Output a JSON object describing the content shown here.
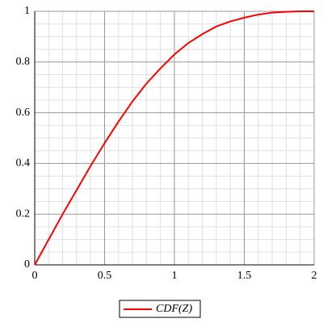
{
  "chart_data": {
    "type": "line",
    "x": [
      0,
      0.1,
      0.2,
      0.3,
      0.4,
      0.5,
      0.6,
      0.7,
      0.8,
      0.9,
      1.0,
      1.1,
      1.2,
      1.3,
      1.4,
      1.5,
      1.6,
      1.7,
      1.8,
      1.9,
      2.0
    ],
    "series": [
      {
        "name": "CDF(Z)",
        "color": "#ff0000",
        "values": [
          0,
          0.1,
          0.2,
          0.295,
          0.39,
          0.48,
          0.565,
          0.645,
          0.715,
          0.775,
          0.83,
          0.875,
          0.91,
          0.94,
          0.96,
          0.975,
          0.987,
          0.995,
          0.998,
          1.0,
          1.0
        ]
      }
    ],
    "xlim": [
      0,
      2
    ],
    "ylim": [
      0,
      1
    ],
    "xticks": [
      0,
      0.5,
      1,
      1.5,
      2
    ],
    "yticks": [
      0,
      0.2,
      0.4,
      0.6,
      0.8,
      1
    ],
    "xminorticks": [
      0.1,
      0.2,
      0.3,
      0.4,
      0.6,
      0.7,
      0.8,
      0.9,
      1.1,
      1.2,
      1.3,
      1.4,
      1.6,
      1.7,
      1.8,
      1.9
    ],
    "yminorticks": [
      0.05,
      0.1,
      0.15,
      0.25,
      0.3,
      0.35,
      0.45,
      0.5,
      0.55,
      0.65,
      0.7,
      0.75,
      0.85,
      0.9,
      0.95
    ],
    "grid": true
  }
}
